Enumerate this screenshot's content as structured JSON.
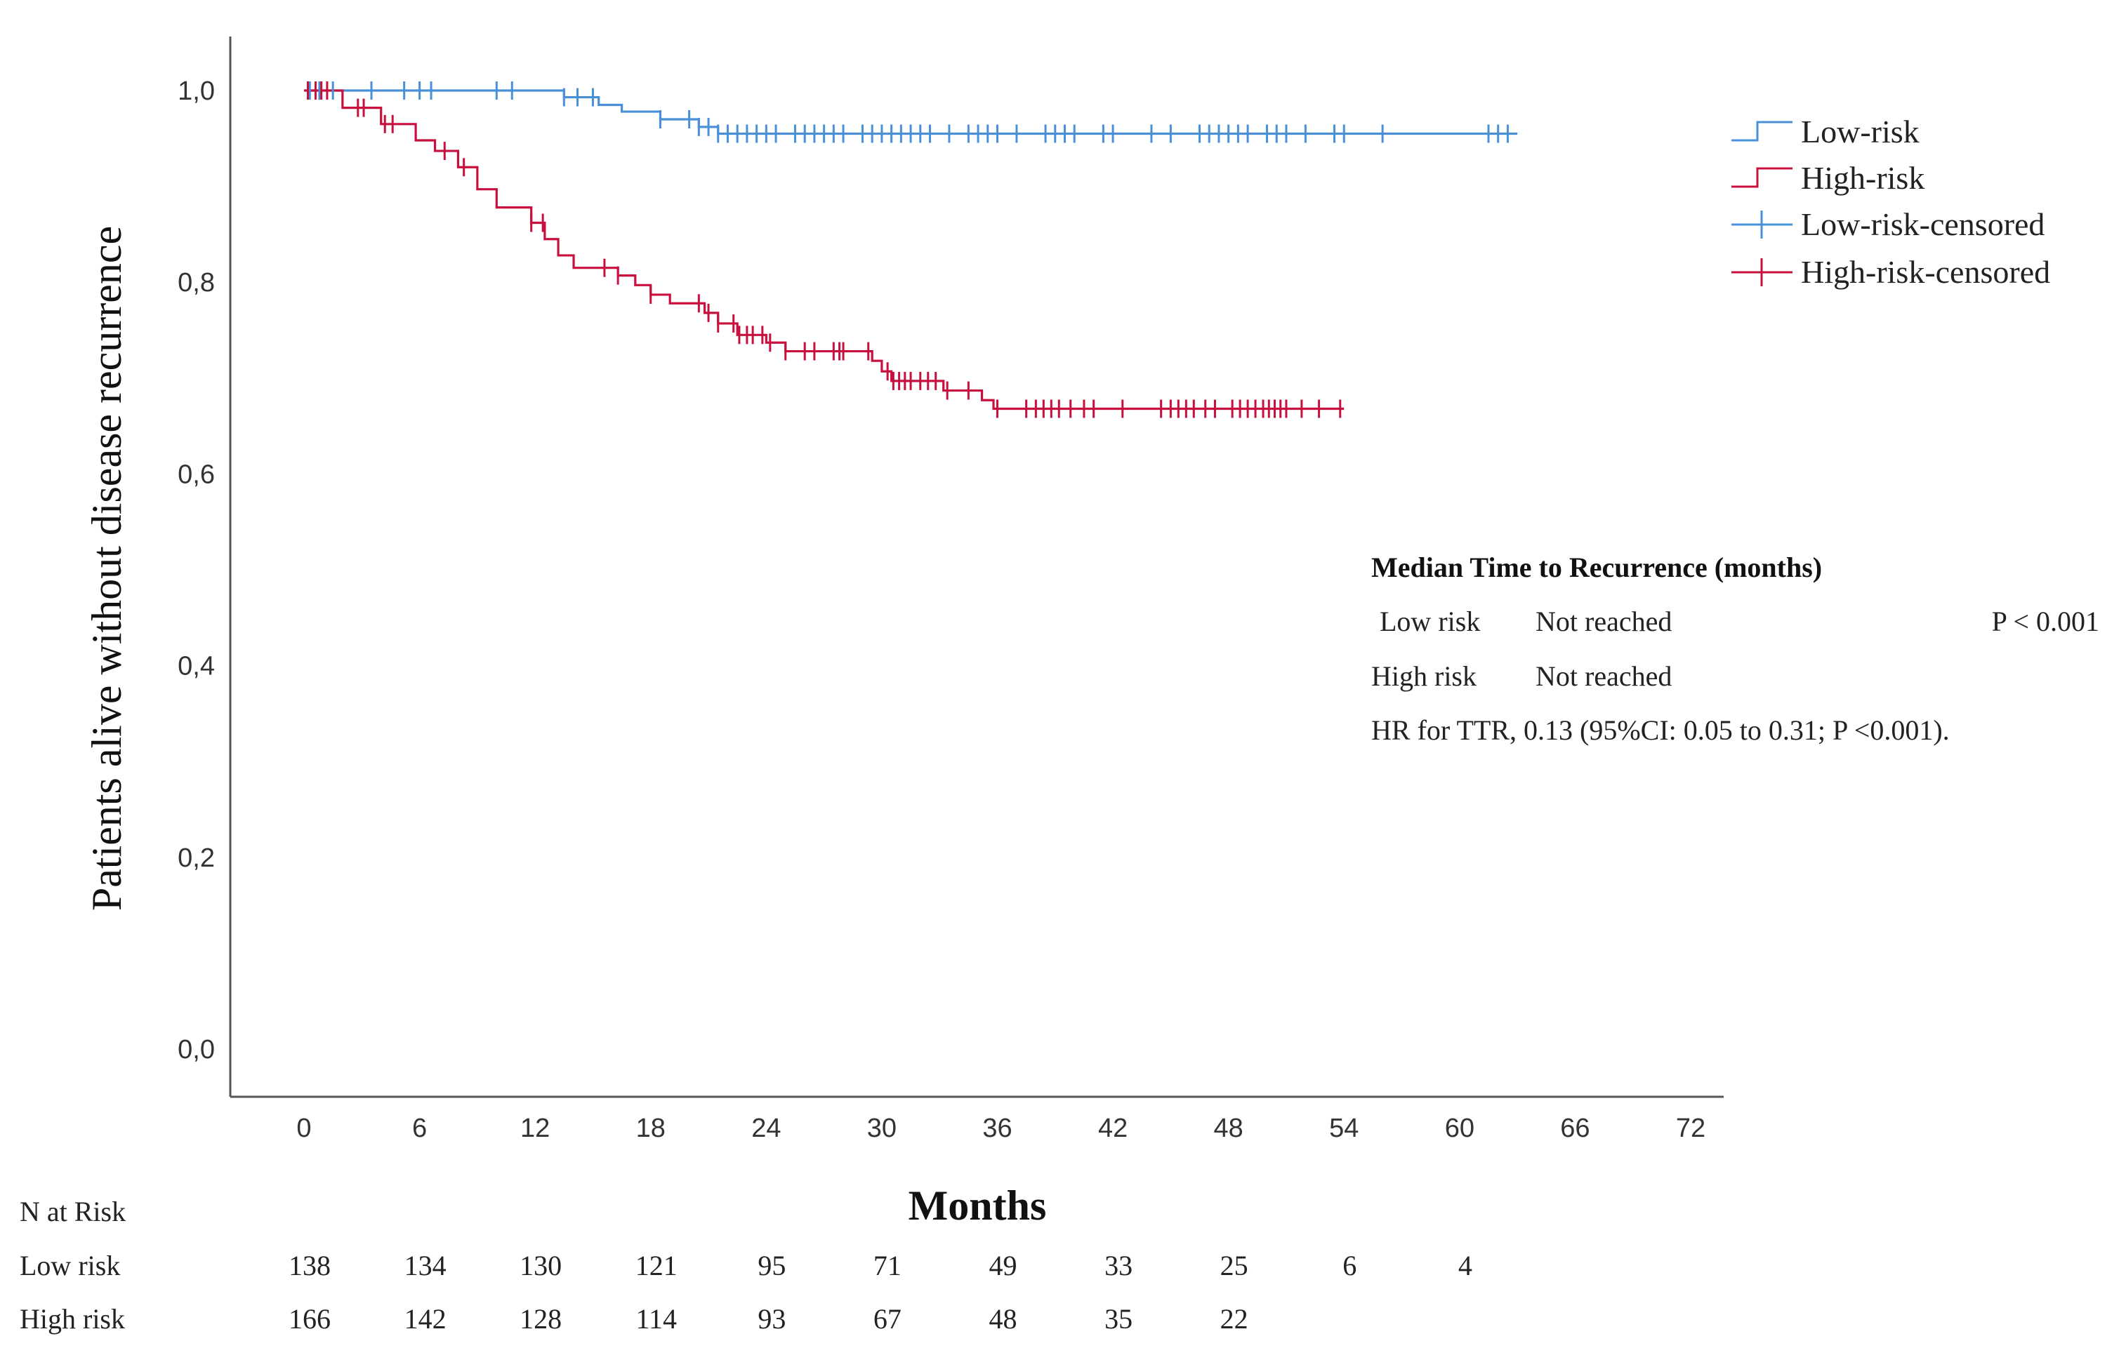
{
  "chart_data": {
    "type": "line",
    "subtype": "kaplan-meier",
    "xlabel": "Months",
    "ylabel": "Patients alive without disease recurrence",
    "xlim": [
      -4,
      73
    ],
    "ylim": [
      -0.05,
      1.06
    ],
    "xticks": [
      0,
      6,
      12,
      18,
      24,
      30,
      36,
      42,
      48,
      54,
      60,
      66,
      72
    ],
    "yticks": [
      0.0,
      0.2,
      0.4,
      0.6,
      0.8,
      1.0
    ],
    "ytick_labels": [
      "0,0",
      "0,2",
      "0,4",
      "0,6",
      "0,8",
      "1,0"
    ],
    "series": [
      {
        "name": "Low-risk",
        "color": "#4a90d9",
        "steps": [
          [
            0,
            1.0
          ],
          [
            13.5,
            0.993
          ],
          [
            15.3,
            0.985
          ],
          [
            16.5,
            0.978
          ],
          [
            18.5,
            0.97
          ],
          [
            20.5,
            0.962
          ],
          [
            21.5,
            0.955
          ],
          [
            63,
            0.955
          ]
        ],
        "censored": [
          0.3,
          0.8,
          1.5,
          3.5,
          5.2,
          6.0,
          6.6,
          10,
          10.8,
          13.5,
          14.2,
          15.0,
          18.5,
          20.0,
          20.5,
          21.0,
          21.5,
          22.0,
          22.5,
          23.0,
          23.5,
          24.0,
          24.5,
          25.5,
          26.0,
          26.5,
          27.0,
          27.5,
          28.0,
          29.0,
          29.5,
          30.0,
          30.5,
          31.0,
          31.5,
          32.0,
          32.5,
          33.5,
          34.5,
          35.0,
          35.5,
          36.0,
          37.0,
          38.5,
          39.0,
          39.5,
          40.0,
          41.5,
          42.0,
          44.0,
          45.0,
          46.5,
          47.0,
          47.5,
          48.0,
          48.5,
          49.0,
          50.0,
          50.5,
          51.0,
          52.0,
          53.5,
          54.0,
          56.0,
          61.5,
          62.0,
          62.5
        ]
      },
      {
        "name": "High-risk",
        "color": "#c8103e",
        "steps": [
          [
            0,
            1.0
          ],
          [
            2.0,
            0.982
          ],
          [
            4.0,
            0.965
          ],
          [
            5.8,
            0.948
          ],
          [
            6.8,
            0.937
          ],
          [
            8.0,
            0.92
          ],
          [
            9.0,
            0.897
          ],
          [
            10.0,
            0.878
          ],
          [
            11.8,
            0.862
          ],
          [
            12.5,
            0.845
          ],
          [
            13.2,
            0.828
          ],
          [
            14.0,
            0.815
          ],
          [
            16.3,
            0.807
          ],
          [
            17.2,
            0.797
          ],
          [
            18.0,
            0.787
          ],
          [
            19.0,
            0.778
          ],
          [
            20.8,
            0.768
          ],
          [
            21.5,
            0.757
          ],
          [
            22.5,
            0.745
          ],
          [
            24.0,
            0.737
          ],
          [
            25.0,
            0.728
          ],
          [
            29.5,
            0.718
          ],
          [
            30.0,
            0.707
          ],
          [
            30.5,
            0.697
          ],
          [
            33.2,
            0.687
          ],
          [
            35.2,
            0.677
          ],
          [
            35.8,
            0.668
          ],
          [
            54,
            0.668
          ]
        ],
        "censored": [
          0.2,
          0.6,
          0.9,
          1.2,
          2.8,
          3.1,
          4.2,
          4.6,
          7.3,
          8.3,
          11.8,
          12.4,
          15.6,
          16.3,
          18.0,
          20.5,
          21.0,
          21.5,
          22.3,
          22.6,
          23.0,
          23.3,
          23.8,
          24.2,
          25.0,
          26.0,
          26.5,
          27.5,
          27.8,
          28.0,
          29.3,
          30.3,
          30.6,
          30.9,
          31.2,
          31.5,
          32.0,
          32.4,
          32.8,
          33.4,
          34.5,
          36.0,
          37.5,
          38.0,
          38.4,
          38.8,
          39.2,
          39.8,
          40.5,
          41.0,
          42.5,
          44.5,
          45.0,
          45.4,
          45.8,
          46.2,
          46.8,
          47.3,
          48.2,
          48.6,
          49.0,
          49.4,
          49.8,
          50.1,
          50.4,
          50.7,
          51.0,
          51.8,
          52.7,
          53.8
        ]
      }
    ],
    "legend": {
      "position": "right",
      "entries": [
        "Low-risk",
        "High-risk",
        "Low-risk-censored",
        "High-risk-censored"
      ]
    },
    "annotation": {
      "title": "Median Time to Recurrence (months)",
      "rows": [
        {
          "group": "Low risk",
          "value": "Not reached",
          "extra": "P < 0.001"
        },
        {
          "group": "High risk",
          "value": "Not reached",
          "extra": ""
        }
      ],
      "hr_text": "HR for TTR, 0.13 (95%CI: 0.05 to 0.31; P <0.001)."
    },
    "risk_table": {
      "title": "N at Risk",
      "times": [
        0,
        6,
        12,
        18,
        24,
        30,
        36,
        42,
        48,
        54,
        60
      ],
      "rows": [
        {
          "label": "Low risk",
          "values": [
            "138",
            "134",
            "130",
            "121",
            "95",
            "71",
            "49",
            "33",
            "25",
            "6",
            "4"
          ]
        },
        {
          "label": "High risk",
          "values": [
            "166",
            "142",
            "128",
            "114",
            "93",
            "67",
            "48",
            "35",
            "22"
          ]
        }
      ]
    }
  }
}
